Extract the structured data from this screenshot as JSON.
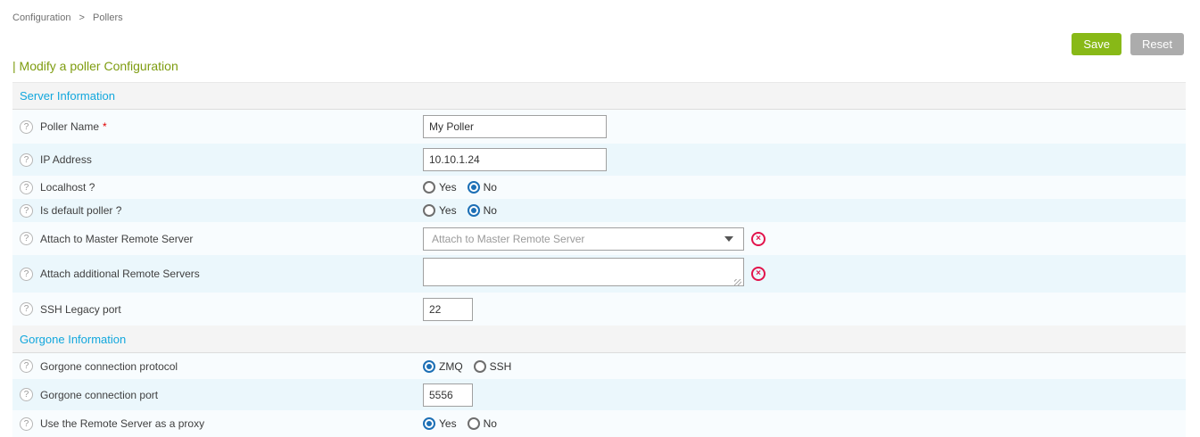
{
  "breadcrumb": {
    "items": [
      "Configuration",
      "Pollers"
    ],
    "separator": ">"
  },
  "toolbar": {
    "save_label": "Save",
    "reset_label": "Reset"
  },
  "page": {
    "title": "| Modify a poller Configuration"
  },
  "sections": {
    "server": {
      "title": "Server Information"
    },
    "gorgone": {
      "title": "Gorgone Information"
    }
  },
  "fields": {
    "poller_name": {
      "label": "Poller Name",
      "required": "*",
      "value": "My Poller"
    },
    "ip_address": {
      "label": "IP Address",
      "value": "10.10.1.24"
    },
    "localhost": {
      "label": "Localhost ?",
      "options": {
        "yes": "Yes",
        "no": "No"
      },
      "selected": "No"
    },
    "default_poller": {
      "label": "Is default poller ?",
      "options": {
        "yes": "Yes",
        "no": "No"
      },
      "selected": "No"
    },
    "attach_master": {
      "label": "Attach to Master Remote Server",
      "placeholder": "Attach to Master Remote Server",
      "value": ""
    },
    "attach_additional": {
      "label": "Attach additional Remote Servers",
      "value": ""
    },
    "ssh_port": {
      "label": "SSH Legacy port",
      "value": "22"
    },
    "gorgone_protocol": {
      "label": "Gorgone connection protocol",
      "options": {
        "zmq": "ZMQ",
        "ssh": "SSH"
      },
      "selected": "ZMQ"
    },
    "gorgone_port": {
      "label": "Gorgone connection port",
      "value": "5556"
    },
    "remote_proxy": {
      "label": "Use the Remote Server as a proxy",
      "options": {
        "yes": "Yes",
        "no": "No"
      },
      "selected": "Yes"
    }
  },
  "icons": {
    "help": "?",
    "delete": "×"
  },
  "colors": {
    "accent_green": "#88B917",
    "accent_blue": "#12A7DD",
    "radio_blue": "#1C6FB5",
    "delete_red": "#E2134B",
    "row_even": "#EBF7FC",
    "row_odd": "#F8FCFE"
  }
}
